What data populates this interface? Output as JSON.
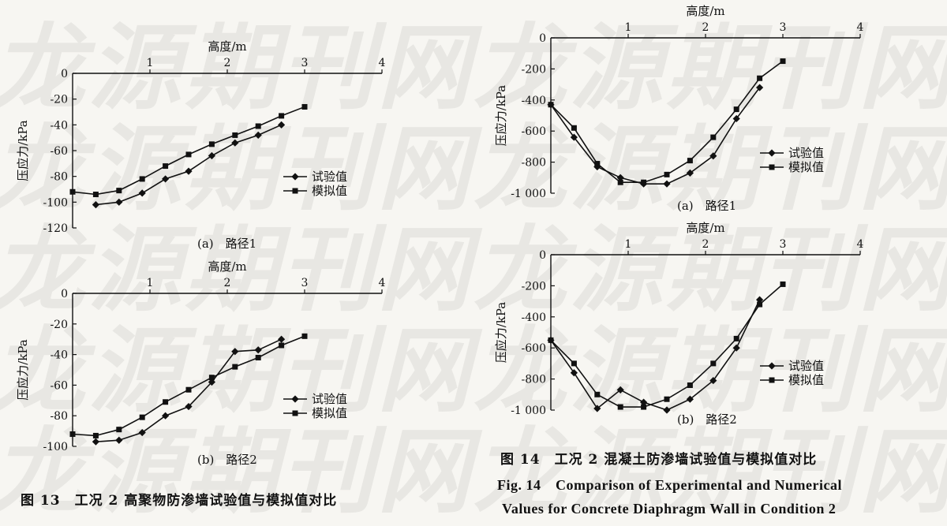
{
  "watermark": {
    "rows": [
      "龙源期刊网龙源期刊网",
      "龙源期刊网龙源期刊网",
      "龙源期刊网龙源期刊网",
      "龙源期刊网龙源期刊网",
      "龙源期刊网龙源期刊网"
    ]
  },
  "captions": {
    "fig13": "图 13　工况 2 高聚物防渗墙试验值与模拟值对比",
    "fig14_cn": "图 14　工况 2 混凝土防渗墙试验值与模拟值对比",
    "fig14_en_line1": "Fig. 14　Comparison of Experimental and Numerical",
    "fig14_en_line2": "Values for Concrete Diaphragm Wall in Condition 2"
  },
  "chart_data": [
    {
      "id": "fig13a",
      "type": "line",
      "subcaption": "(a)　路径1",
      "xlabel": "高度/m",
      "ylabel": "压应力/kPa",
      "xlim": [
        0,
        4
      ],
      "ylim": [
        -120,
        0
      ],
      "xticks": [
        1,
        2,
        3,
        4
      ],
      "yticks": [
        0,
        -20,
        -40,
        -60,
        -80,
        -100,
        -120
      ],
      "legend": "right-middle",
      "series": [
        {
          "name": "试验值",
          "marker": "diamond",
          "x": [
            0.3,
            0.6,
            0.9,
            1.2,
            1.5,
            1.8,
            2.1,
            2.4,
            2.7
          ],
          "y": [
            -102,
            -100,
            -93,
            -82,
            -76,
            -64,
            -54,
            -48,
            -40
          ]
        },
        {
          "name": "模拟值",
          "marker": "square",
          "x": [
            0.0,
            0.3,
            0.6,
            0.9,
            1.2,
            1.5,
            1.8,
            2.1,
            2.4,
            2.7,
            3.0
          ],
          "y": [
            -92,
            -94,
            -91,
            -82,
            -72,
            -63,
            -55,
            -48,
            -41,
            -33,
            -26
          ]
        }
      ]
    },
    {
      "id": "fig13b",
      "type": "line",
      "subcaption": "(b)　路径2",
      "xlabel": "高度/m",
      "ylabel": "压应力/kPa",
      "xlim": [
        0,
        4
      ],
      "ylim": [
        -100,
        0
      ],
      "xticks": [
        1,
        2,
        3,
        4
      ],
      "yticks": [
        0,
        -20,
        -40,
        -60,
        -80,
        -100
      ],
      "legend": "right-middle",
      "series": [
        {
          "name": "试验值",
          "marker": "diamond",
          "x": [
            0.3,
            0.6,
            0.9,
            1.2,
            1.5,
            1.8,
            2.1,
            2.4,
            2.7
          ],
          "y": [
            -97,
            -96,
            -91,
            -80,
            -74,
            -58,
            -38,
            -37,
            -30
          ]
        },
        {
          "name": "模拟值",
          "marker": "square",
          "x": [
            0.0,
            0.3,
            0.6,
            0.9,
            1.2,
            1.5,
            1.8,
            2.1,
            2.4,
            2.7,
            3.0
          ],
          "y": [
            -92,
            -93,
            -89,
            -81,
            -71,
            -63,
            -55,
            -48,
            -42,
            -34,
            -28
          ]
        }
      ]
    },
    {
      "id": "fig14a",
      "type": "line",
      "subcaption": "(a)　路径1",
      "xlabel": "高度/m",
      "ylabel": "压应力/kPa",
      "xlim": [
        0,
        4
      ],
      "ylim": [
        -1000,
        0
      ],
      "xticks": [
        1,
        2,
        3,
        4
      ],
      "yticks": [
        0,
        -200,
        -400,
        -600,
        -800,
        -1000
      ],
      "ytick_labels": [
        "0",
        "-200",
        "-400",
        "-600",
        "-800",
        "-1 000"
      ],
      "legend": "right-middle",
      "series": [
        {
          "name": "试验值",
          "marker": "diamond",
          "x": [
            0.0,
            0.3,
            0.6,
            0.9,
            1.2,
            1.5,
            1.8,
            2.1,
            2.4,
            2.7
          ],
          "y": [
            -430,
            -640,
            -830,
            -900,
            -940,
            -940,
            -870,
            -760,
            -520,
            -320
          ]
        },
        {
          "name": "模拟值",
          "marker": "square",
          "x": [
            0.0,
            0.3,
            0.6,
            0.9,
            1.2,
            1.5,
            1.8,
            2.1,
            2.4,
            2.7,
            3.0
          ],
          "y": [
            -430,
            -580,
            -810,
            -930,
            -930,
            -880,
            -790,
            -640,
            -460,
            -260,
            -150
          ]
        }
      ]
    },
    {
      "id": "fig14b",
      "type": "line",
      "subcaption": "(b)　路径2",
      "xlabel": "高度/m",
      "ylabel": "压应力/kPa",
      "xlim": [
        0,
        4
      ],
      "ylim": [
        -1000,
        0
      ],
      "xticks": [
        1,
        2,
        3,
        4
      ],
      "yticks": [
        0,
        -200,
        -400,
        -600,
        -800,
        -1000
      ],
      "ytick_labels": [
        "0",
        "-200",
        "-400",
        "-600",
        "-800",
        "-1 000"
      ],
      "legend": "right-middle",
      "series": [
        {
          "name": "试验值",
          "marker": "diamond",
          "x": [
            0.0,
            0.3,
            0.6,
            0.9,
            1.2,
            1.5,
            1.8,
            2.1,
            2.4,
            2.7
          ],
          "y": [
            -550,
            -760,
            -990,
            -870,
            -950,
            -1000,
            -930,
            -810,
            -600,
            -290
          ]
        },
        {
          "name": "模拟值",
          "marker": "square",
          "x": [
            0.0,
            0.3,
            0.6,
            0.9,
            1.2,
            1.5,
            1.8,
            2.1,
            2.4,
            2.7,
            3.0
          ],
          "y": [
            -550,
            -700,
            -900,
            -980,
            -980,
            -930,
            -840,
            -700,
            -540,
            -320,
            -190
          ]
        }
      ]
    }
  ]
}
